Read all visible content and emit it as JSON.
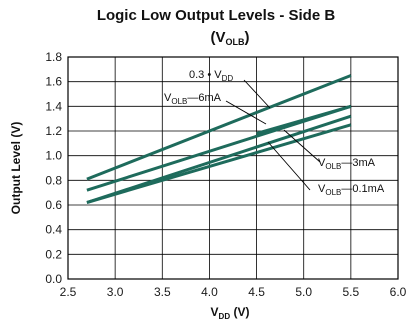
{
  "chart_data": {
    "type": "line",
    "title": "Logic Low Output Levels - Side B",
    "subtitle": {
      "prefix": "(V",
      "sub": "OLB",
      "suffix": ")"
    },
    "xlabel": {
      "prefix": "V",
      "sub": "DD",
      "suffix": " (V)"
    },
    "ylabel": "Output Level (V)",
    "xlim": [
      2.5,
      6.0
    ],
    "ylim": [
      0.0,
      1.8
    ],
    "x_ticks": [
      "2.5",
      "3.0",
      "3.5",
      "4.0",
      "4.5",
      "5.0",
      "5.5",
      "6.0"
    ],
    "y_ticks": [
      "0.0",
      "0.2",
      "0.4",
      "0.6",
      "0.8",
      "1.0",
      "1.2",
      "1.4",
      "1.6",
      "1.8"
    ],
    "grid": true,
    "line_color": "#1e6b5c",
    "series": [
      {
        "name": "0.3 • V_DD",
        "x": [
          2.7,
          5.5
        ],
        "y": [
          0.81,
          1.65
        ]
      },
      {
        "name": "V_OLB—6mA",
        "x": [
          4.5,
          5.5
        ],
        "y": [
          1.18,
          1.4
        ]
      },
      {
        "name": "",
        "x": [
          2.7,
          5.5
        ],
        "y": [
          0.72,
          1.4
        ]
      },
      {
        "name": "V_OLB—3mA",
        "x": [
          2.7,
          5.5
        ],
        "y": [
          0.62,
          1.32
        ]
      },
      {
        "name": "V_OLB—0.1mA",
        "x": [
          2.7,
          5.5
        ],
        "y": [
          0.62,
          1.25
        ]
      }
    ],
    "annotations": {
      "vdd30": {
        "main": "0.3 • V",
        "sub": "DD",
        "tail": ""
      },
      "i6ma": {
        "main": "V",
        "sub": "OLB",
        "tail": "—6mA"
      },
      "i3ma": {
        "main": "V",
        "sub": "OLB",
        "tail": "—3mA"
      },
      "i01ma": {
        "main": "V",
        "sub": "OLB",
        "tail": "—0.1mA"
      }
    }
  }
}
